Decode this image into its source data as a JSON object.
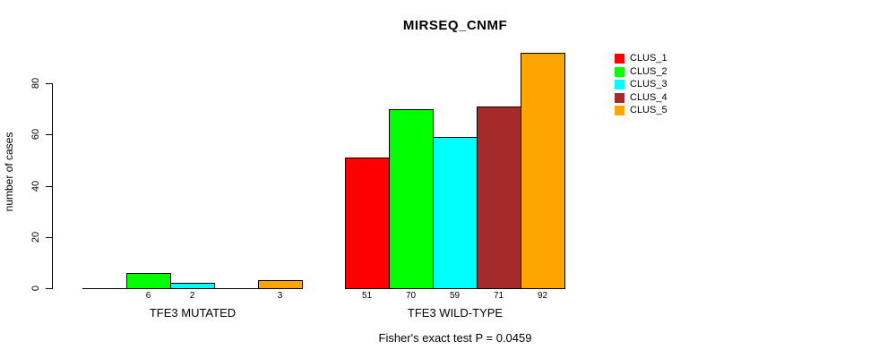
{
  "chart_data": {
    "type": "bar",
    "title": "MIRSEQ_CNMF",
    "ylabel": "number of cases",
    "xlabel": "",
    "yticks": [
      0,
      20,
      40,
      60,
      80
    ],
    "ylim": [
      0,
      92
    ],
    "categories": [
      "TFE3 MUTATED",
      "TFE3 WILD-TYPE"
    ],
    "series": [
      {
        "name": "CLUS_1",
        "color": "#FF0000",
        "values": [
          0,
          51
        ]
      },
      {
        "name": "CLUS_2",
        "color": "#00FF00",
        "values": [
          6,
          70
        ]
      },
      {
        "name": "CLUS_3",
        "color": "#00FFFF",
        "values": [
          2,
          59
        ]
      },
      {
        "name": "CLUS_4",
        "color": "#A52A2A",
        "values": [
          0,
          71
        ]
      },
      {
        "name": "CLUS_5",
        "color": "#FFA500",
        "values": [
          3,
          92
        ]
      }
    ],
    "bar_value_labels": [
      [
        "",
        "6",
        "2",
        "",
        "3"
      ],
      [
        "51",
        "70",
        "59",
        "71",
        "92"
      ]
    ],
    "annotation": "Fisher's exact test P = 0.0459",
    "legend_position": "right",
    "grid": false,
    "axis_color": "#000000",
    "background_color": "#FFFFFF"
  }
}
